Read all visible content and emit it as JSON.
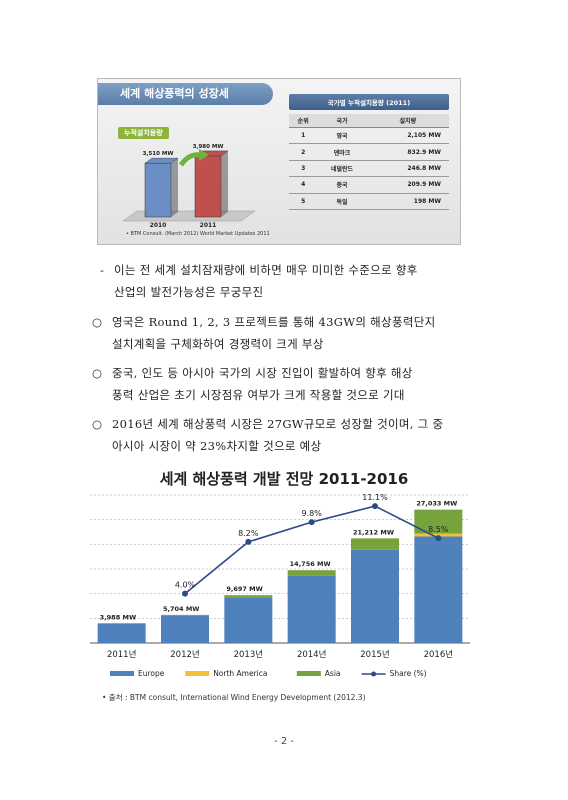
{
  "figure1": {
    "title": "세계 해상풍력의 성장세",
    "cumulative_label": "누적설치용량",
    "bars": [
      {
        "year": "2010",
        "value_label": "3,510 MW",
        "value": 3510,
        "color": "#6b8fc5"
      },
      {
        "year": "2011",
        "value_label": "3,980 MW",
        "value": 3980,
        "color": "#c0504d"
      }
    ],
    "footnote": "• BTM Consult. (March 2012) World Market Updates 2011",
    "table": {
      "title": "국가별 누적설치용량 (2011)",
      "headers": [
        "순위",
        "국가",
        "설치량"
      ],
      "rows": [
        [
          "1",
          "영국",
          "2,105 MW"
        ],
        [
          "2",
          "덴마크",
          "832.9 MW"
        ],
        [
          "3",
          "네덜란드",
          "246.8 MW"
        ],
        [
          "4",
          "중국",
          "209.9 MW"
        ],
        [
          "5",
          "독일",
          "198 MW"
        ]
      ]
    }
  },
  "body": {
    "dash_item": {
      "marker": "-",
      "lines": [
        "이는 전 세계 설치잠재량에 비하면 매우 미미한 수준으로 향후",
        "산업의 발전가능성은 무궁무진"
      ]
    },
    "items": [
      {
        "marker": "○",
        "lines": [
          "영국은 Round 1, 2, 3 프로젝트를 통해 43GW의 해상풍력단지",
          "설치계획을 구체화하여 경쟁력이 크게 부상"
        ]
      },
      {
        "marker": "○",
        "lines": [
          "중국, 인도 등 아시아 국가의 시장 진입이 활발하여 향후 해상",
          "풍력 산업은 초기 시장점유 여부가 크게 작용할 것으로 기대"
        ]
      },
      {
        "marker": "○",
        "lines": [
          "2016년 세계 해상풍력 시장은 27GW규모로 성장할 것이며, 그 중",
          "아시아 시장이 약 23%차지할 것으로 예상"
        ]
      }
    ]
  },
  "chart_data": {
    "type": "bar",
    "title": "세계 해상풍력 개발 전망 2011-2016",
    "categories": [
      "2011년",
      "2012년",
      "2013년",
      "2014년",
      "2015년",
      "2016년"
    ],
    "series": [
      {
        "name": "Europe",
        "values": [
          3988,
          5620,
          9250,
          13600,
          18900,
          21600
        ],
        "color": "#4f81bd"
      },
      {
        "name": "North America",
        "values": [
          0,
          0,
          0,
          0,
          0,
          580
        ],
        "color": "#f2c037"
      },
      {
        "name": "Asia",
        "values": [
          0,
          84,
          447,
          1156,
          2312,
          4853
        ],
        "color": "#77a33c"
      }
    ],
    "totals_labels": [
      "3,988 MW",
      "5,704 MW",
      "9,697 MW",
      "14,756 MW",
      "21,212 MW",
      "27,033 MW"
    ],
    "totals": [
      3988,
      5704,
      9697,
      14756,
      21212,
      27033
    ],
    "line_series": {
      "name": "Share (%)",
      "values": [
        null,
        4.0,
        8.2,
        9.8,
        11.1,
        8.5
      ],
      "labels": [
        "",
        "4.0%",
        "8.2%",
        "9.8%",
        "11.1%",
        "8.5%"
      ],
      "color": "#2c4a8a"
    },
    "ylim": [
      0,
      30000
    ],
    "share_ylim": [
      0,
      12
    ],
    "grid": true,
    "legend": "bottom"
  },
  "source": "• 출처 : BTM consult, International Wind Energy Development (2012.3)",
  "page_number": "- 2 -"
}
